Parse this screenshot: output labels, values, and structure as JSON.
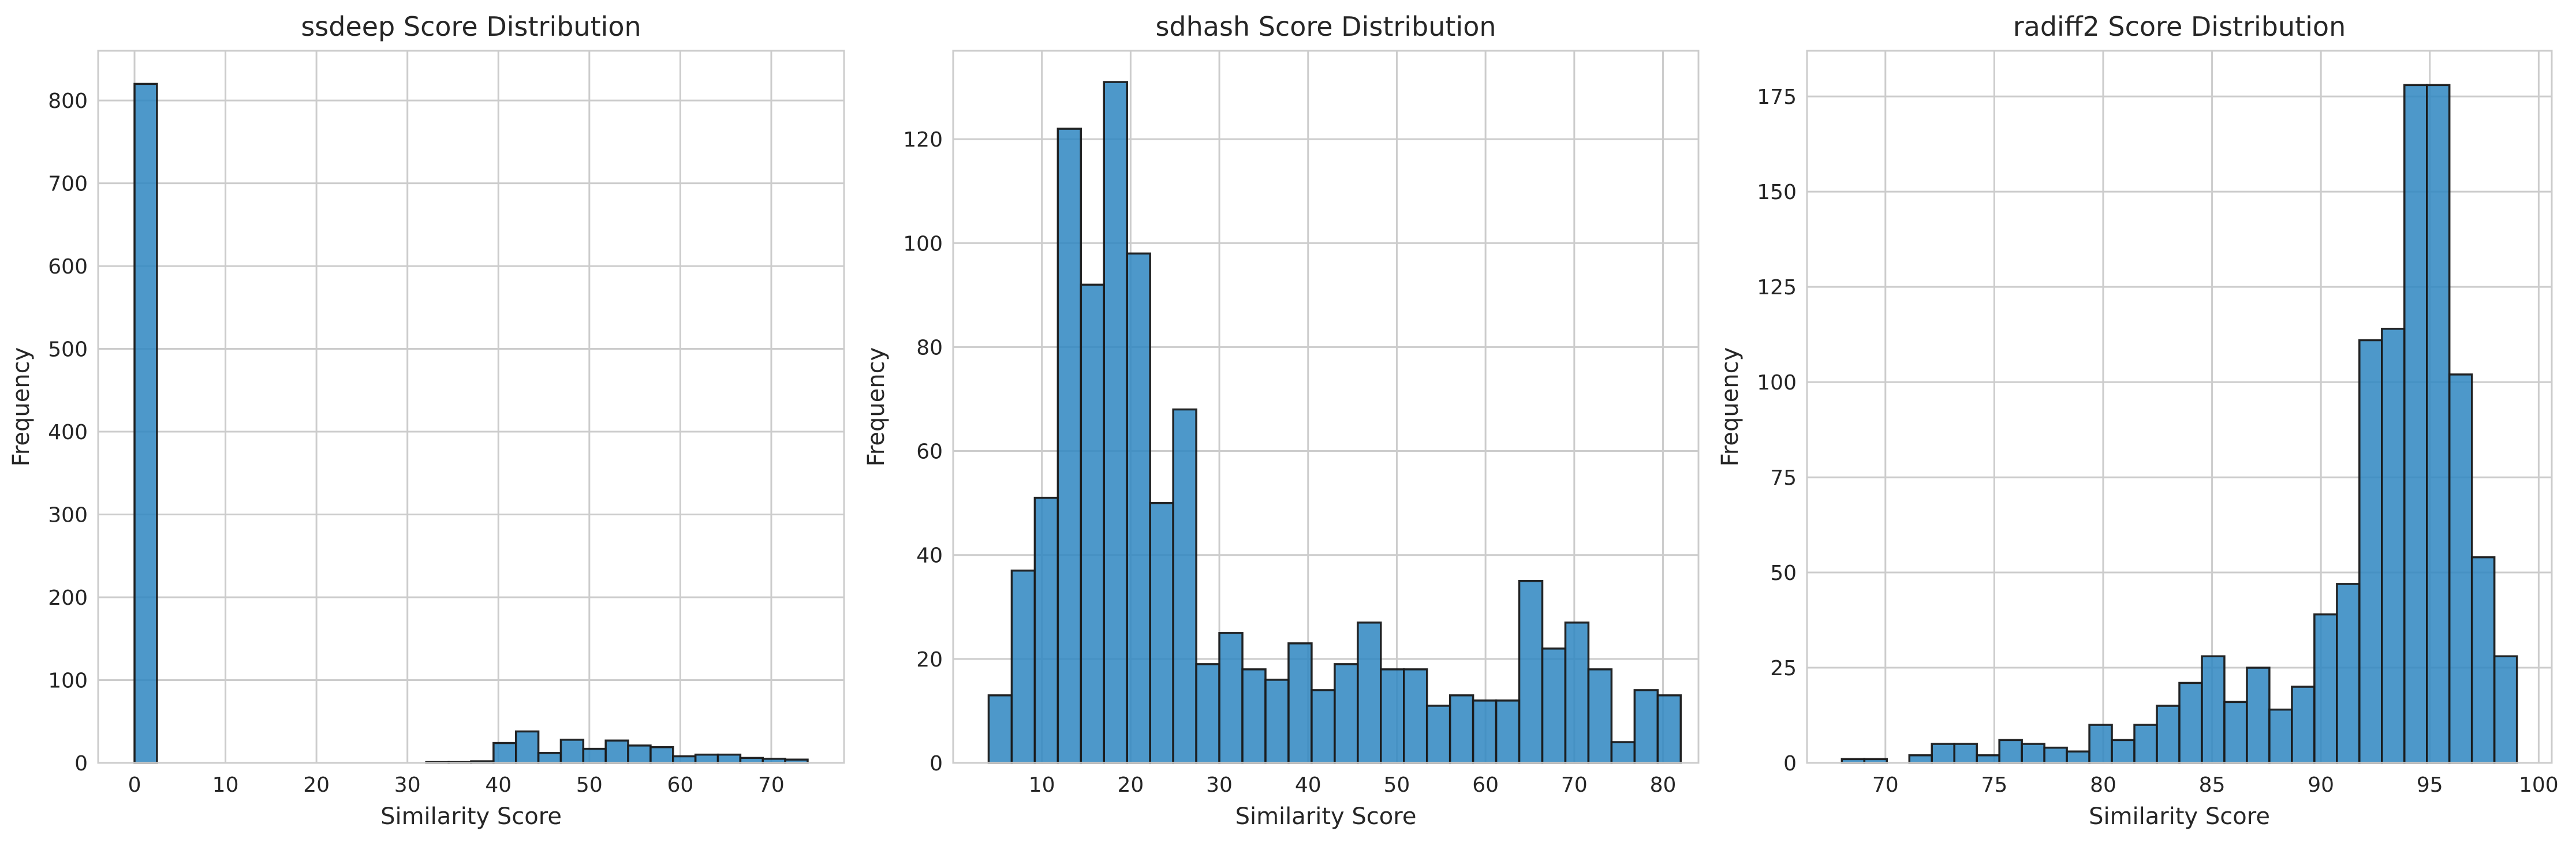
{
  "style": {
    "bar_color": "#2e86c1",
    "bar_edge": "#1a1a1a",
    "grid_color": "#cccccc",
    "background": "#ffffff"
  },
  "chart_data": [
    {
      "type": "bar",
      "title": "ssdeep Score Distribution",
      "xlabel": "Similarity Score",
      "ylabel": "Frequency",
      "xlim": [
        -4,
        78
      ],
      "ylim": [
        0,
        860
      ],
      "xticks": [
        0,
        10,
        20,
        30,
        40,
        50,
        60,
        70
      ],
      "yticks": [
        0,
        100,
        200,
        300,
        400,
        500,
        600,
        700,
        800
      ],
      "grid": true,
      "bin_start": 0,
      "bin_width": 2.466667,
      "counts": [
        820,
        0,
        0,
        0,
        0,
        0,
        0,
        0,
        0,
        0,
        0,
        0,
        0,
        1,
        1,
        2,
        24,
        38,
        12,
        28,
        17,
        27,
        21,
        19,
        8,
        10,
        10,
        6,
        5,
        4
      ]
    },
    {
      "type": "bar",
      "title": "sdhash Score Distribution",
      "xlabel": "Similarity Score",
      "ylabel": "Frequency",
      "xlim": [
        0,
        84
      ],
      "ylim": [
        0,
        137
      ],
      "xticks": [
        10,
        20,
        30,
        40,
        50,
        60,
        70,
        80
      ],
      "yticks": [
        0,
        20,
        40,
        60,
        80,
        100,
        120
      ],
      "grid": true,
      "bin_start": 4,
      "bin_width": 2.6,
      "counts": [
        13,
        37,
        51,
        122,
        92,
        131,
        98,
        50,
        68,
        19,
        25,
        18,
        16,
        23,
        14,
        19,
        27,
        18,
        18,
        11,
        13,
        12,
        12,
        35,
        22,
        27,
        18,
        4,
        14,
        13
      ]
    },
    {
      "type": "bar",
      "title": "radiff2 Score Distribution",
      "xlabel": "Similarity Score",
      "ylabel": "Frequency",
      "xlim": [
        66.4,
        100.6
      ],
      "ylim": [
        0,
        187
      ],
      "xticks": [
        70,
        75,
        80,
        85,
        90,
        95,
        100
      ],
      "yticks": [
        0,
        25,
        50,
        75,
        100,
        125,
        150,
        175
      ],
      "grid": true,
      "bin_start": 68,
      "bin_width": 1.033333,
      "counts": [
        1,
        1,
        0,
        2,
        5,
        5,
        2,
        6,
        5,
        4,
        3,
        10,
        6,
        10,
        15,
        21,
        28,
        16,
        25,
        14,
        20,
        39,
        47,
        111,
        114,
        178,
        178,
        102,
        54,
        28
      ]
    }
  ]
}
